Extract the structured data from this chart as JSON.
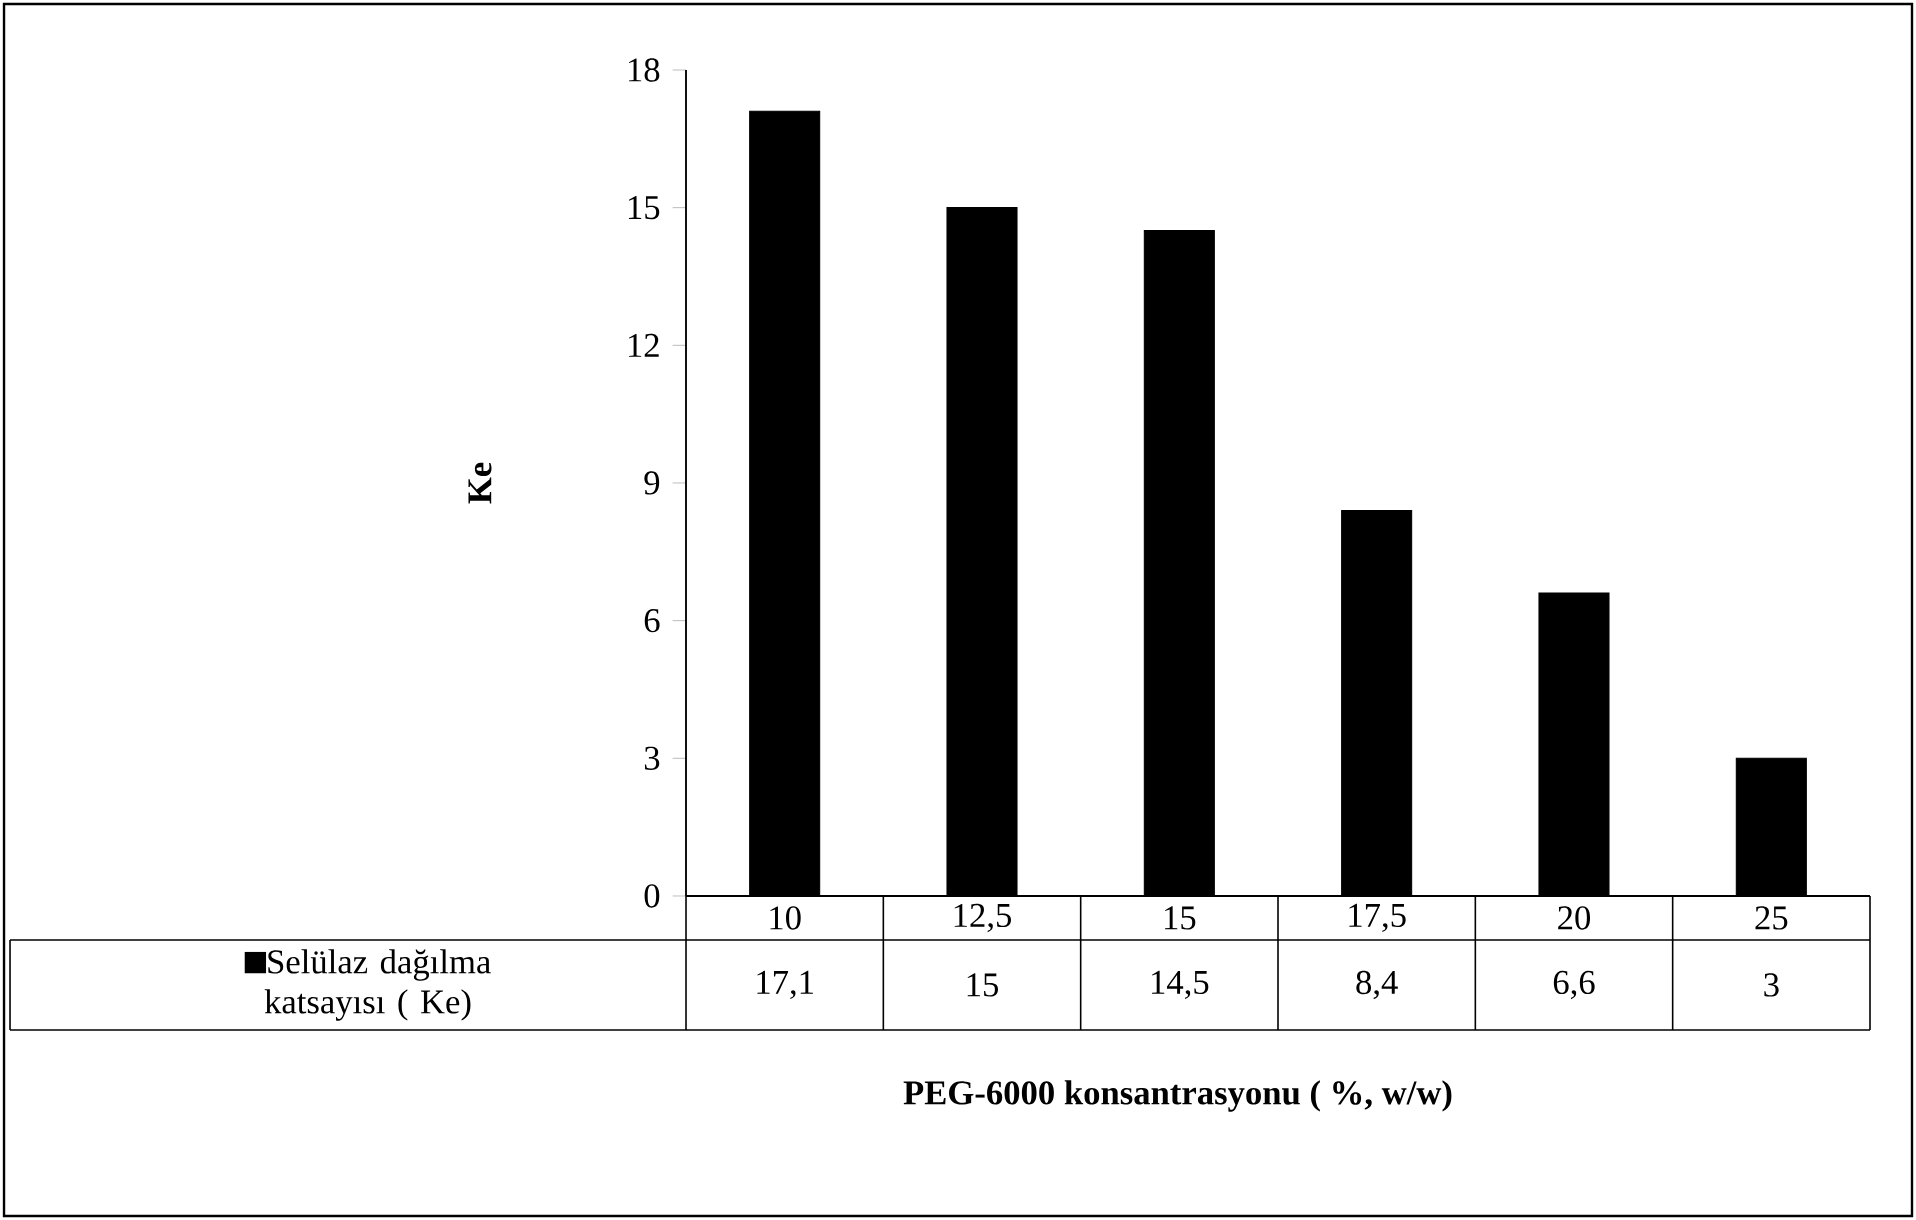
{
  "chart_data": {
    "type": "bar",
    "xlabel": "PEG-6000 konsantrasyonu ( %, w/w)",
    "ylabel": "Ke",
    "categories": [
      "10",
      "12,5",
      "15",
      "17,5",
      "20",
      "25"
    ],
    "series": [
      {
        "name": "Selülaz dağılma katsayısı ( Ke)",
        "color": "#000000",
        "values": [
          17.1,
          15,
          14.5,
          8.4,
          6.6,
          3
        ],
        "value_labels": [
          "17,1",
          "15",
          "14,5",
          "8,4",
          "6,6",
          "3"
        ]
      }
    ],
    "ylim": [
      0,
      18
    ],
    "yticks": [
      0,
      3,
      6,
      9,
      12,
      15,
      18
    ],
    "legend": "bottom"
  }
}
